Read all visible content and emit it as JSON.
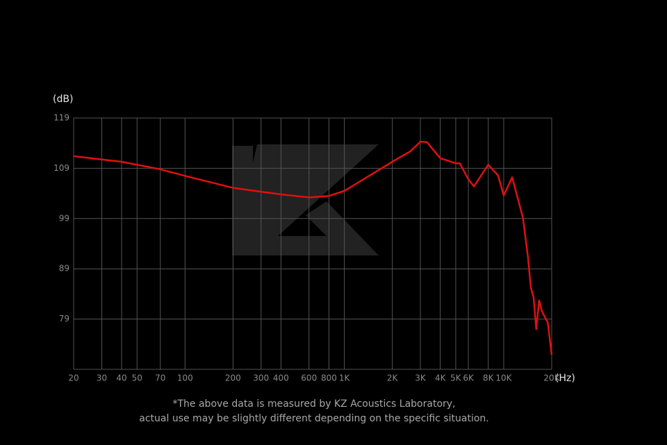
{
  "chart_data": {
    "type": "line",
    "y_label": "(dB)",
    "x_label": "(Hz)",
    "xscale": "log",
    "grid": true,
    "xlim": [
      20,
      20000
    ],
    "ylim": [
      69,
      119
    ],
    "yticks": [
      79,
      89,
      99,
      109,
      119
    ],
    "xticks": [
      20,
      30,
      40,
      50,
      70,
      100,
      200,
      300,
      400,
      600,
      800,
      {
        "value": 1000,
        "label": "1K"
      },
      {
        "value": 2000,
        "label": "2K"
      },
      {
        "value": 3000,
        "label": "3K"
      },
      {
        "value": 4000,
        "label": "4K"
      },
      {
        "value": 5000,
        "label": "5K"
      },
      {
        "value": 6000,
        "label": "6K"
      },
      {
        "value": 8000,
        "label": "8K"
      },
      {
        "value": 10000,
        "label": "10K"
      },
      {
        "value": 20000,
        "label": "20K"
      }
    ],
    "x": [
      20,
      40,
      70,
      100,
      200,
      400,
      600,
      800,
      1000,
      2000,
      2600,
      3000,
      3300,
      4000,
      5000,
      5300,
      6000,
      6500,
      8000,
      9200,
      10000,
      11300,
      13200,
      14200,
      14800,
      15400,
      16000,
      16700,
      17400,
      18900,
      20000
    ],
    "series": [
      {
        "color": "#e01010",
        "values": [
          111.4,
          110.3,
          108.8,
          107.5,
          105.1,
          103.8,
          103.2,
          103.5,
          104.5,
          110.3,
          112.4,
          114.3,
          114.2,
          111,
          110,
          110,
          106.8,
          105.4,
          109.7,
          107.6,
          103.6,
          107.2,
          99.2,
          91.3,
          85.3,
          83.3,
          77,
          82.7,
          80.5,
          78.3,
          71.9
        ]
      }
    ],
    "note": [
      "*The above data is measured by KZ Acoustics Laboratory,",
      "actual use may be slightly different depending on the specific situation."
    ]
  }
}
